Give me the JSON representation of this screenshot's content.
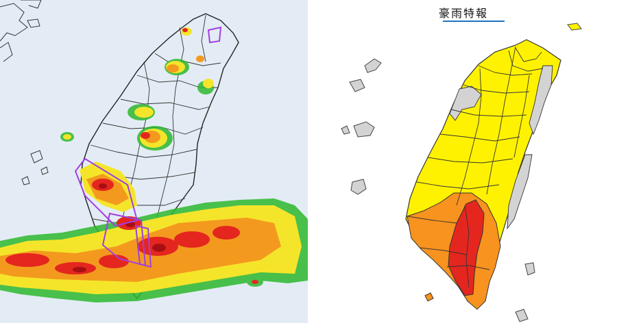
{
  "radar_map": {
    "colors": {
      "background": "#e3ecf4",
      "border": "#222222",
      "echo_green": "#2db82d",
      "echo_yellow": "#f5e52a",
      "echo_orange": "#f39a1e",
      "echo_red": "#e4261f",
      "echo_darkred": "#a80f12",
      "warning_polygon": "#a23ee0"
    }
  },
  "warning_map": {
    "title": "豪雨特報",
    "colors": {
      "no_warning": "#d3d3d3",
      "heavy_rain": "#fff200",
      "extremely_heavy_rain": "#f7931e",
      "torrential_rain": "#e4261f",
      "border": "#333333",
      "title_underline": "#1e73be"
    }
  }
}
